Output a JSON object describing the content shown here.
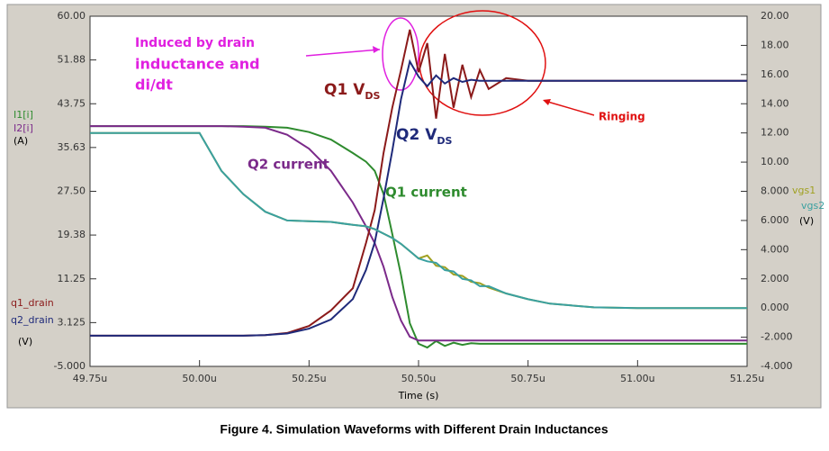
{
  "chart_data": {
    "type": "line",
    "x_label": "Time (s)",
    "xlim": [
      49.75,
      51.25
    ],
    "xticks": [
      {
        "value": 49.75,
        "label": "49.75u"
      },
      {
        "value": 50.0,
        "label": "50.00u"
      },
      {
        "value": 50.25,
        "label": "50.25u"
      },
      {
        "value": 50.5,
        "label": "50.50u"
      },
      {
        "value": 50.75,
        "label": "50.75u"
      },
      {
        "value": 51.0,
        "label": "51.00u"
      },
      {
        "value": 51.25,
        "label": "51.25u"
      }
    ],
    "ylim": [
      -5,
      60
    ],
    "yticks": [
      {
        "value": 60,
        "label": "60.00"
      },
      {
        "value": 51.88,
        "label": "51.88"
      },
      {
        "value": 43.75,
        "label": "43.75"
      },
      {
        "value": 35.63,
        "label": "35.63"
      },
      {
        "value": 27.5,
        "label": "27.50"
      },
      {
        "value": 19.38,
        "label": "19.38"
      },
      {
        "value": 11.25,
        "label": "11.25"
      },
      3.125,
      {
        "value": -5,
        "label": "-5.000"
      }
    ],
    "y2lim": [
      -4,
      20
    ],
    "y2ticks": [
      {
        "value": 20,
        "label": "20.00"
      },
      {
        "value": 18,
        "label": "18.00"
      },
      {
        "value": 16,
        "label": "16.00"
      },
      {
        "value": 14,
        "label": "14.00"
      },
      {
        "value": 12,
        "label": "12.00"
      },
      {
        "value": 10,
        "label": "10.00"
      },
      {
        "value": 8,
        "label": "8.000"
      },
      {
        "value": 6,
        "label": "6.000"
      },
      {
        "value": 4,
        "label": "4.000"
      },
      {
        "value": 2,
        "label": "2.000"
      },
      {
        "value": 0,
        "label": "0.000"
      },
      {
        "value": -2,
        "label": "-2.000"
      },
      {
        "value": -4,
        "label": "-4.000"
      }
    ],
    "units": {
      "current": "(A)",
      "drain": "(V)",
      "gate": "(V)"
    },
    "x": [
      49.75,
      50.0,
      50.05,
      50.1,
      50.15,
      50.2,
      50.25,
      50.3,
      50.35,
      50.38,
      50.4,
      50.42,
      50.44,
      50.46,
      50.48,
      50.5,
      50.52,
      50.54,
      50.56,
      50.58,
      50.6,
      50.62,
      50.64,
      50.66,
      50.7,
      50.75,
      50.8,
      50.9,
      51.0,
      51.25
    ],
    "series": [
      {
        "name": "I1[i]",
        "color": "#2e8b2e",
        "values": [
          39.6,
          39.6,
          39.6,
          39.6,
          39.5,
          39.3,
          38.5,
          37.1,
          34.6,
          33,
          31.3,
          27,
          19.6,
          12,
          3.0,
          -0.8,
          -1.5,
          -0.3,
          -1.2,
          -0.6,
          -1,
          -0.7,
          -0.8,
          -0.8,
          -0.8,
          -0.8,
          -0.8,
          -0.8,
          -0.8,
          -0.8
        ]
      },
      {
        "name": "I2[i]",
        "color": "#7b2a8a",
        "values": [
          39.6,
          39.6,
          39.6,
          39.5,
          39.3,
          38,
          35.4,
          31.3,
          25.4,
          21,
          17.9,
          13.5,
          7.9,
          3.5,
          0.5,
          -0.2,
          -0.2,
          -0.2,
          -0.2,
          -0.2,
          -0.2,
          -0.2,
          -0.2,
          -0.2,
          -0.2,
          -0.2,
          -0.2,
          -0.2,
          -0.2,
          -0.2
        ]
      },
      {
        "name": "q1_drain",
        "color": "#8b1a1a",
        "values": [
          0.7,
          0.7,
          0.7,
          0.7,
          0.8,
          1.2,
          2.5,
          5.4,
          9.5,
          17.9,
          24,
          34.6,
          43,
          50,
          57.5,
          49.6,
          55,
          41,
          53,
          43,
          51,
          45,
          50,
          46.5,
          48.5,
          48,
          48,
          48,
          48,
          48
        ]
      },
      {
        "name": "q2_drain",
        "color": "#1f2a7a",
        "values": [
          0.7,
          0.7,
          0.7,
          0.7,
          0.8,
          1.1,
          2.0,
          3.7,
          7.5,
          12.9,
          18,
          26.2,
          35,
          44.6,
          51.6,
          48.8,
          47,
          49,
          47.5,
          48.5,
          47.8,
          48.2,
          48,
          48,
          48,
          48,
          48,
          48,
          48,
          48
        ]
      },
      {
        "name": "vgs1",
        "color": "#a0a020",
        "axis": "y2",
        "values": [
          12,
          12,
          9.4,
          7.8,
          6.6,
          6.0,
          5.95,
          5.9,
          5.7,
          5.6,
          5.4,
          5.1,
          4.8,
          4.4,
          3.9,
          3.4,
          3.6,
          2.9,
          2.8,
          2.3,
          2.2,
          1.8,
          1.7,
          1.4,
          1.0,
          0.6,
          0.3,
          0.05,
          0,
          0
        ]
      },
      {
        "name": "vgs2",
        "color": "#3aa0a0",
        "axis": "y2",
        "values": [
          12,
          12,
          9.4,
          7.8,
          6.6,
          6.0,
          5.95,
          5.9,
          5.7,
          5.6,
          5.4,
          5.1,
          4.8,
          4.4,
          3.9,
          3.4,
          3.2,
          3.1,
          2.6,
          2.5,
          2.0,
          1.9,
          1.5,
          1.5,
          1.0,
          0.6,
          0.3,
          0.05,
          0,
          0
        ]
      }
    ],
    "annotations": [
      {
        "lines": [
          "Induced by drain",
          "inductance and",
          "di/dt"
        ],
        "color": "#e020e0"
      },
      {
        "text": "Q1 V",
        "sub": "DS",
        "color": "#8b1a1a"
      },
      {
        "text": "Q2 V",
        "sub": "DS",
        "color": "#1f2a7a"
      },
      {
        "text": "Q2 current",
        "color": "#7b2a8a"
      },
      {
        "text": "Q1 current",
        "color": "#2e8b2e"
      },
      {
        "text": "Ringing",
        "color": "#e01010"
      }
    ],
    "caption": "Figure 4. Simulation Waveforms with Different Drain Inductances"
  }
}
